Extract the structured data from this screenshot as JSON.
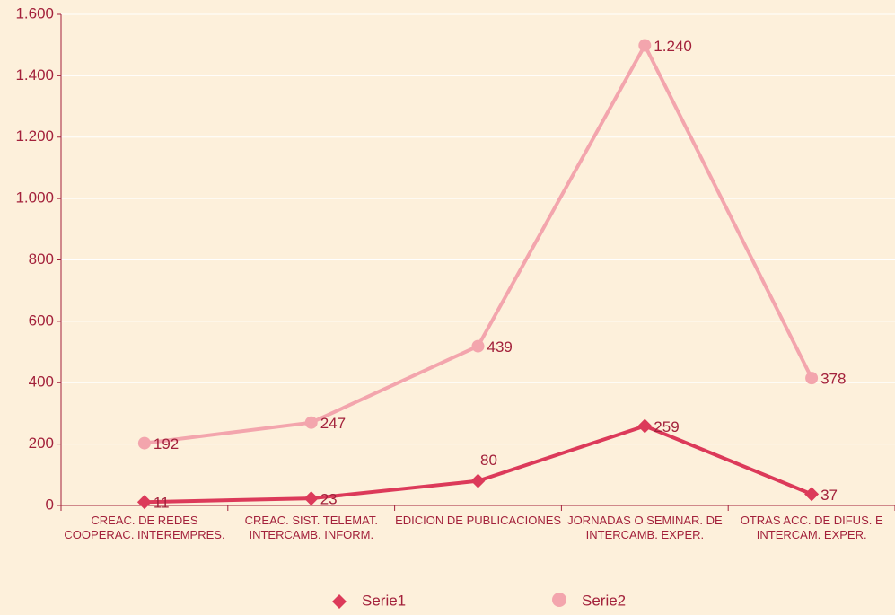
{
  "chart_data": {
    "type": "line",
    "stacked": true,
    "categories": [
      "CREAC. DE REDES COOPERAC. INTEREMPRES.",
      "CREAC. SIST. TELEMAT. INTERCAMB. INFORM.",
      "EDICION DE PUBLICACIONES",
      "JORNADAS O SEMINAR. DE INTERCAMB. EXPER.",
      "OTRAS ACC. DE DIFUS. E INTERCAM. EXPER."
    ],
    "series": [
      {
        "name": "Serie1",
        "color": "#dc3a5a",
        "marker": "diamond",
        "values": [
          11,
          23,
          80,
          259,
          37
        ]
      },
      {
        "name": "Serie2",
        "color": "#f3a5ad",
        "marker": "circle",
        "values": [
          192,
          247,
          439,
          1240,
          378
        ],
        "value_labels": [
          "192",
          "247",
          "439",
          "1.240",
          "378"
        ]
      }
    ],
    "ylim": [
      0,
      1600
    ],
    "yticks": [
      0,
      200,
      400,
      600,
      800,
      {
        "value": 1000,
        "label": "1.000"
      },
      {
        "value": 1200,
        "label": "1.200"
      },
      {
        "value": 1400,
        "label": "1.400"
      },
      {
        "value": 1600,
        "label": "1.600"
      }
    ],
    "grid": true,
    "legend": "bottom"
  }
}
